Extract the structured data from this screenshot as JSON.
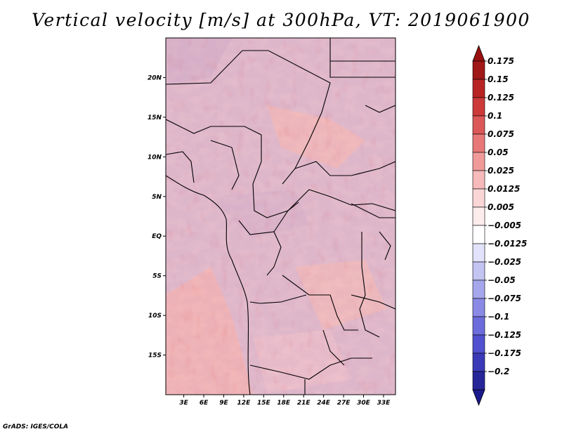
{
  "title": "Vertical velocity [m/s] at 300hPa, VT: 2019061900",
  "credit": "GrADS: IGES/COLA",
  "chart_data": {
    "type": "heatmap",
    "variable": "Vertical velocity",
    "units": "m/s",
    "level": "300hPa",
    "valid_time": "2019061900",
    "x_ticks": [
      "3E",
      "6E",
      "9E",
      "12E",
      "15E",
      "18E",
      "21E",
      "24E",
      "27E",
      "30E",
      "33E"
    ],
    "x_values": [
      3,
      6,
      9,
      12,
      15,
      18,
      21,
      24,
      27,
      30,
      33
    ],
    "y_ticks": [
      "20N",
      "15N",
      "10N",
      "5N",
      "EQ",
      "5S",
      "10S",
      "15S"
    ],
    "y_values": [
      20,
      15,
      10,
      5,
      0,
      -5,
      -10,
      -15
    ],
    "xlim": [
      0.3,
      34.8
    ],
    "ylim": [
      -20,
      25
    ],
    "colorbar": {
      "levels": [
        0.175,
        0.15,
        0.125,
        0.1,
        0.075,
        0.05,
        0.025,
        0.0125,
        0.005,
        -0.005,
        -0.0125,
        -0.025,
        -0.05,
        -0.075,
        -0.1,
        -0.125,
        -0.175,
        -0.2
      ],
      "labels": [
        "0.175",
        "0.15",
        "0.125",
        "0.1",
        "0.075",
        "0.05",
        "0.025",
        "0.0125",
        "0.005",
        "−0.005",
        "−0.0125",
        "−0.025",
        "−0.05",
        "−0.075",
        "−0.1",
        "−0.125",
        "−0.175",
        "−0.2"
      ],
      "colors": [
        "#a01818",
        "#b82424",
        "#cc3a3a",
        "#dc5858",
        "#e87878",
        "#f09a9a",
        "#f6baba",
        "#fad6d6",
        "#fcecec",
        "#ffffff",
        "#e2e2fa",
        "#c4c4f2",
        "#a6a6ec",
        "#8a8ae6",
        "#6c6cdc",
        "#5050d0",
        "#3a3ab8",
        "#262698"
      ],
      "top_arrow_color": "#9a1010",
      "bottom_arrow_color": "#1a1a8c"
    }
  }
}
